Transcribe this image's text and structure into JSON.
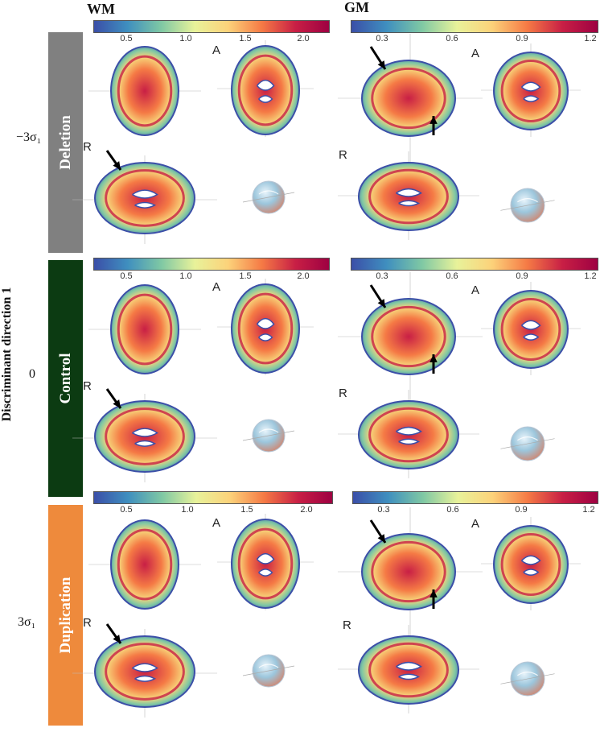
{
  "columns": {
    "wm": "WM",
    "gm": "GM"
  },
  "axis_label": "Discriminant direction 1",
  "rows": [
    {
      "name": "Deletion",
      "value": "−3σ₁",
      "color": "#808080",
      "letters": {
        "wm_a": "A",
        "wm_r": "R",
        "gm_a": "A",
        "gm_r": "R"
      }
    },
    {
      "name": "Control",
      "value": "0",
      "color": "#0c3b12",
      "letters": {
        "wm_a": "A",
        "wm_r": "R",
        "gm_a": "A",
        "gm_r": "R"
      }
    },
    {
      "name": "Duplication",
      "value": "3σ₁",
      "color": "#ee8a3c",
      "letters": {
        "wm_a": "A",
        "wm_r": "R",
        "gm_a": "A",
        "gm_r": "R"
      }
    }
  ],
  "colorbars": {
    "wm_ticks": [
      "0.5",
      "1.0",
      "1.5",
      "2.0"
    ],
    "gm_ticks": [
      "0.3",
      "0.6",
      "0.9",
      "1.2"
    ],
    "colormap": [
      "#3b4fa8",
      "#3f8fbf",
      "#7fc8a4",
      "#e8f29a",
      "#fcd27a",
      "#f57a45",
      "#c81f45",
      "#9e0142"
    ]
  },
  "icons": {
    "arrow": "arrow-icon",
    "brain3d": "brain-3d-render-icon"
  }
}
